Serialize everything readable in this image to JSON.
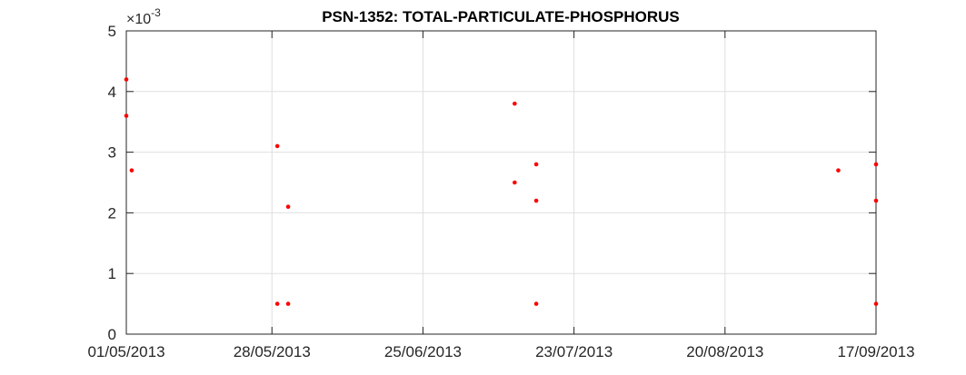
{
  "chart_data": {
    "type": "scatter",
    "title": "PSN-1352: TOTAL-PARTICULATE-PHOSPHORUS",
    "xlabel": "",
    "ylabel": "",
    "y_exponent_label": "×10",
    "y_exponent": "-3",
    "x_axis": {
      "type": "date",
      "range": [
        "2013-05-01",
        "2013-09-17"
      ],
      "ticks": [
        "2013-05-01",
        "2013-05-28",
        "2013-06-25",
        "2013-07-23",
        "2013-08-20",
        "2013-09-17"
      ],
      "tick_labels": [
        "01/05/2013",
        "28/05/2013",
        "25/06/2013",
        "23/07/2013",
        "20/08/2013",
        "17/09/2013"
      ]
    },
    "y_axis": {
      "range": [
        0,
        5
      ],
      "ticks": [
        0,
        1,
        2,
        3,
        4,
        5
      ],
      "tick_labels": [
        "0",
        "1",
        "2",
        "3",
        "4",
        "5"
      ],
      "scale_factor": 0.001
    },
    "grid": true,
    "marker_color": "#ff0000",
    "points": [
      {
        "x": "2013-05-01",
        "y": 0.0042
      },
      {
        "x": "2013-05-01",
        "y": 0.0036
      },
      {
        "x": "2013-05-02",
        "y": 0.0027
      },
      {
        "x": "2013-05-29",
        "y": 0.0031
      },
      {
        "x": "2013-05-29",
        "y": 0.0005
      },
      {
        "x": "2013-05-31",
        "y": 0.0021
      },
      {
        "x": "2013-05-31",
        "y": 0.0005
      },
      {
        "x": "2013-07-12",
        "y": 0.0038
      },
      {
        "x": "2013-07-12",
        "y": 0.0025
      },
      {
        "x": "2013-07-16",
        "y": 0.0028
      },
      {
        "x": "2013-07-16",
        "y": 0.0022
      },
      {
        "x": "2013-07-16",
        "y": 0.0005
      },
      {
        "x": "2013-09-10",
        "y": 0.0027
      },
      {
        "x": "2013-09-17",
        "y": 0.0028
      },
      {
        "x": "2013-09-17",
        "y": 0.0022
      },
      {
        "x": "2013-09-17",
        "y": 0.0005
      }
    ]
  }
}
